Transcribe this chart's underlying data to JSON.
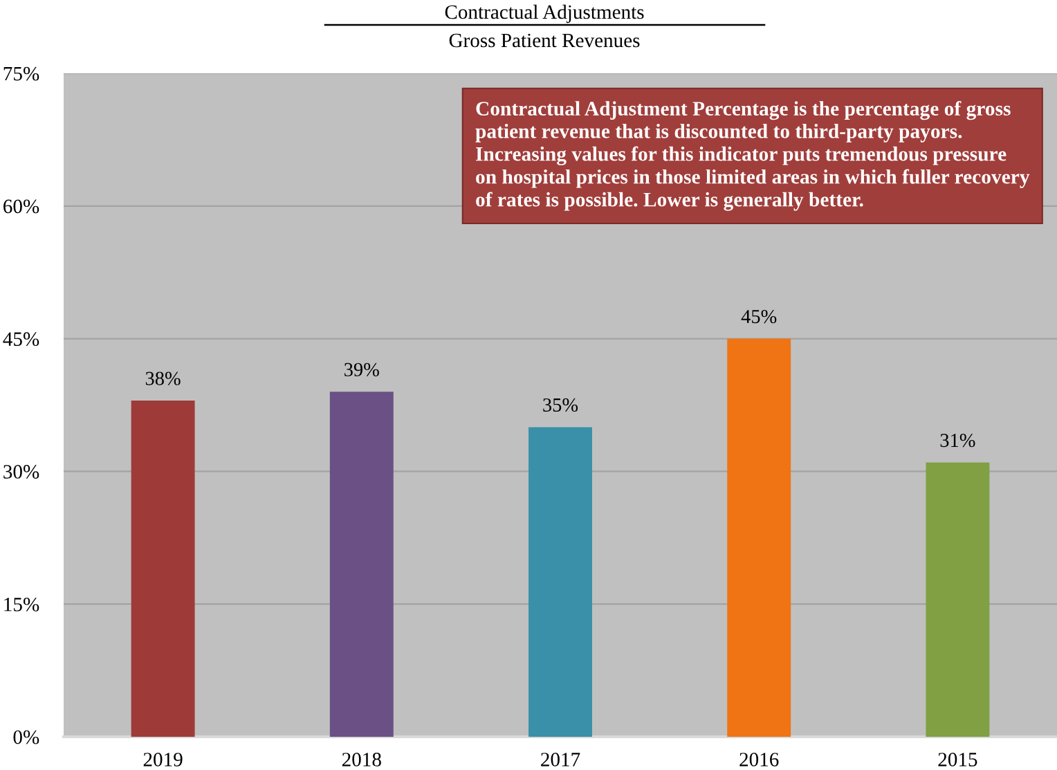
{
  "chart_data": {
    "type": "bar",
    "title": "Contractual Adjustments",
    "subtitle": "Gross Patient Revenues",
    "categories": [
      "2019",
      "2018",
      "2017",
      "2016",
      "2015"
    ],
    "values": [
      38,
      39,
      35,
      45,
      31
    ],
    "colors": [
      "#9e3b39",
      "#6a5084",
      "#3a8fa9",
      "#f07414",
      "#80a043"
    ],
    "value_labels": [
      "38%",
      "39%",
      "35%",
      "45%",
      "31%"
    ],
    "ylim": [
      0,
      75
    ],
    "yticks": [
      {
        "value": 0,
        "label": "0%"
      },
      {
        "value": 15,
        "label": "15%"
      },
      {
        "value": 30,
        "label": "30%"
      },
      {
        "value": 45,
        "label": "45%"
      },
      {
        "value": 60,
        "label": "60%"
      },
      {
        "value": 75,
        "label": "75%"
      }
    ],
    "grid": "y",
    "annotations": [
      "Contractual Adjustment Percentage is the percentage of gross patient revenue that is discounted to third-party payors. Increasing values for this indicator puts tremendous pressure on hospital prices in those limited areas in which fuller recovery of rates is possible. Lower is generally better."
    ]
  }
}
